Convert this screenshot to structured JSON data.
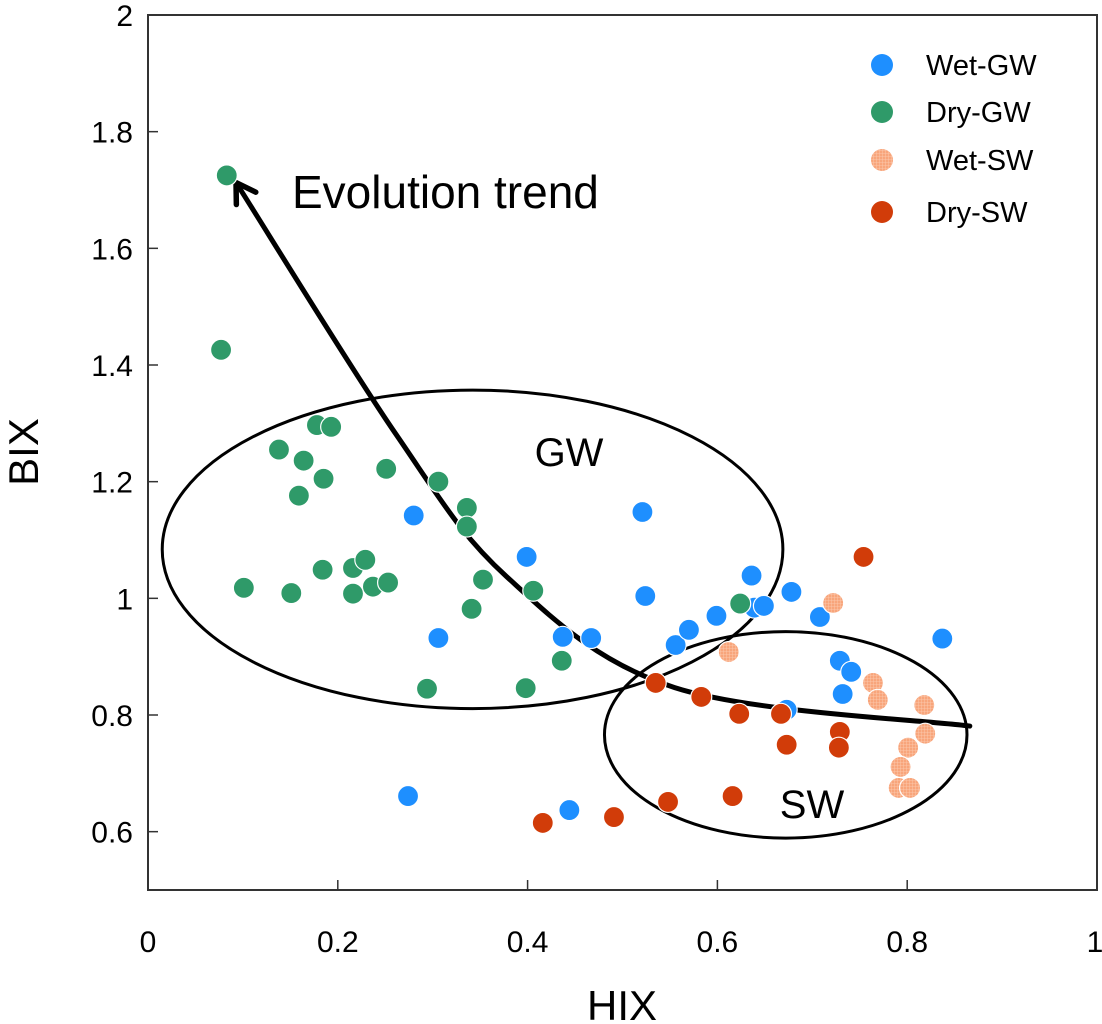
{
  "chart_data": {
    "type": "scatter",
    "title": "",
    "xlabel": "HIX",
    "ylabel": "BIX",
    "xlim": [
      0,
      1
    ],
    "ylim": [
      0.5,
      2
    ],
    "xticks": [
      "0",
      "0.2",
      "0.4",
      "0.6",
      "0.8",
      "1"
    ],
    "xtick_values": [
      0,
      0.2,
      0.4,
      0.6,
      0.8,
      1
    ],
    "yticks": [
      "0.6",
      "0.8",
      "1",
      "1.2",
      "1.4",
      "1.6",
      "1.8",
      "2"
    ],
    "ytick_values": [
      0.6,
      0.8,
      1.0,
      1.2,
      1.4,
      1.6,
      1.8,
      2.0
    ],
    "grid": false,
    "legend_position": "top-right",
    "series": [
      {
        "name": "Wet-GW",
        "color": "#1E8FFF",
        "pattern": "solid",
        "points": [
          [
            0.28,
            1.142
          ],
          [
            0.521,
            1.148
          ],
          [
            0.399,
            1.071
          ],
          [
            0.524,
            1.004
          ],
          [
            0.306,
            0.932
          ],
          [
            0.437,
            0.934
          ],
          [
            0.467,
            0.932
          ],
          [
            0.556,
            0.92
          ],
          [
            0.636,
            1.039
          ],
          [
            0.678,
            1.011
          ],
          [
            0.639,
            0.984
          ],
          [
            0.649,
            0.987
          ],
          [
            0.599,
            0.97
          ],
          [
            0.57,
            0.946
          ],
          [
            0.708,
            0.968
          ],
          [
            0.729,
            0.893
          ],
          [
            0.741,
            0.874
          ],
          [
            0.732,
            0.836
          ],
          [
            0.837,
            0.931
          ],
          [
            0.673,
            0.809
          ],
          [
            0.274,
            0.661
          ],
          [
            0.444,
            0.637
          ]
        ]
      },
      {
        "name": "Dry-GW",
        "color": "#2F9A69",
        "pattern": "solid",
        "points": [
          [
            0.083,
            1.725
          ],
          [
            0.077,
            1.426
          ],
          [
            0.178,
            1.297
          ],
          [
            0.193,
            1.294
          ],
          [
            0.138,
            1.255
          ],
          [
            0.164,
            1.236
          ],
          [
            0.185,
            1.205
          ],
          [
            0.159,
            1.176
          ],
          [
            0.251,
            1.222
          ],
          [
            0.306,
            1.2
          ],
          [
            0.336,
            1.155
          ],
          [
            0.336,
            1.123
          ],
          [
            0.184,
            1.049
          ],
          [
            0.216,
            1.052
          ],
          [
            0.229,
            1.066
          ],
          [
            0.101,
            1.018
          ],
          [
            0.151,
            1.009
          ],
          [
            0.216,
            1.008
          ],
          [
            0.237,
            1.02
          ],
          [
            0.253,
            1.027
          ],
          [
            0.353,
            1.032
          ],
          [
            0.406,
            1.013
          ],
          [
            0.341,
            0.982
          ],
          [
            0.436,
            0.893
          ],
          [
            0.294,
            0.845
          ],
          [
            0.398,
            0.846
          ],
          [
            0.624,
            0.991
          ]
        ]
      },
      {
        "name": "Wet-SW",
        "color": "#F8A57B",
        "pattern": "hatched",
        "points": [
          [
            0.722,
            0.992
          ],
          [
            0.612,
            0.908
          ],
          [
            0.764,
            0.855
          ],
          [
            0.769,
            0.826
          ],
          [
            0.818,
            0.817
          ],
          [
            0.819,
            0.768
          ],
          [
            0.801,
            0.744
          ],
          [
            0.793,
            0.711
          ],
          [
            0.791,
            0.675
          ],
          [
            0.803,
            0.675
          ]
        ]
      },
      {
        "name": "Dry-SW",
        "color": "#D13C09",
        "pattern": "solid",
        "points": [
          [
            0.754,
            1.071
          ],
          [
            0.535,
            0.855
          ],
          [
            0.583,
            0.831
          ],
          [
            0.623,
            0.802
          ],
          [
            0.667,
            0.802
          ],
          [
            0.729,
            0.771
          ],
          [
            0.728,
            0.744
          ],
          [
            0.673,
            0.749
          ],
          [
            0.416,
            0.615
          ],
          [
            0.491,
            0.625
          ],
          [
            0.548,
            0.651
          ],
          [
            0.616,
            0.661
          ]
        ]
      }
    ],
    "annotations": {
      "evolution_label": "Evolution trend",
      "gw_label": "GW",
      "sw_label": "SW",
      "gw_ellipse": {
        "center": [
          0.342,
          1.084
        ],
        "semi_axes": [
          0.327,
          0.273
        ]
      },
      "sw_ellipse": {
        "center": [
          0.672,
          0.766
        ],
        "semi_axes": [
          0.191,
          0.177
        ]
      },
      "trend_arrow": [
        [
          0.866,
          0.781
        ],
        [
          0.555,
          0.847
        ],
        [
          0.378,
          1.037
        ],
        [
          0.261,
          1.282
        ],
        [
          0.095,
          1.707
        ]
      ]
    }
  }
}
